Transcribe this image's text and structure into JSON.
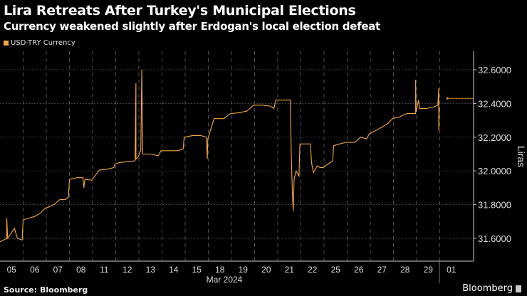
{
  "chart_data": {
    "type": "line",
    "title": "Lira Retreats After Turkey's Municipal Elections",
    "subtitle": "Currency weakened slightly after Erdogan's local election defeat",
    "legend": [
      {
        "name": "USD-TRY Currency",
        "color": "#f5a742"
      }
    ],
    "legend_placement": "top-left",
    "xlabel": "Mar 2024",
    "ylabel": "Liras",
    "ylim": [
      31.48,
      32.7
    ],
    "grid": true,
    "y_axis_side": "right",
    "x_ticks": [
      "05",
      "06",
      "07",
      "08",
      "11",
      "12",
      "13",
      "14",
      "15",
      "18",
      "19",
      "20",
      "21",
      "22",
      "25",
      "26",
      "27",
      "28",
      "29",
      "01"
    ],
    "y_ticks": [
      "31.6000",
      "31.8000",
      "32.0000",
      "32.2000",
      "32.4000",
      "32.6000"
    ],
    "series": [
      {
        "name": "USD-TRY Currency",
        "points": [
          [
            "05",
            0,
            31.58
          ],
          [
            "05",
            7,
            31.6
          ],
          [
            "05",
            7,
            31.72
          ],
          [
            "05",
            8,
            31.6
          ],
          [
            "05",
            15,
            31.66
          ],
          [
            "05",
            18,
            31.6
          ],
          [
            "05",
            23,
            31.59
          ],
          [
            "06",
            0,
            31.71
          ],
          [
            "06",
            6,
            31.72
          ],
          [
            "06",
            12,
            31.73
          ],
          [
            "06",
            18,
            31.75
          ],
          [
            "06",
            23,
            31.78
          ],
          [
            "07",
            0,
            31.78
          ],
          [
            "07",
            8,
            31.8
          ],
          [
            "07",
            14,
            31.83
          ],
          [
            "07",
            20,
            31.83
          ],
          [
            "07",
            23,
            31.845
          ],
          [
            "08",
            0,
            31.95
          ],
          [
            "08",
            8,
            31.96
          ],
          [
            "08",
            14,
            31.96
          ],
          [
            "08",
            15,
            31.9
          ],
          [
            "08",
            16,
            31.95
          ],
          [
            "08",
            23,
            31.945
          ],
          [
            "11",
            7,
            32.005
          ],
          [
            "11",
            15,
            32.01
          ],
          [
            "11",
            22,
            32.02
          ],
          [
            "11",
            23,
            32.04
          ],
          [
            "12",
            4,
            32.05
          ],
          [
            "12",
            12,
            32.055
          ],
          [
            "12",
            20,
            32.06
          ],
          [
            "12",
            21,
            32.52
          ],
          [
            "12",
            21,
            32.07
          ],
          [
            "12",
            23,
            32.08
          ],
          [
            "13",
            2,
            32.12
          ],
          [
            "13",
            3,
            32.6
          ],
          [
            "13",
            4,
            32.1
          ],
          [
            "13",
            12,
            32.1
          ],
          [
            "13",
            20,
            32.09
          ],
          [
            "13",
            23,
            32.12
          ],
          [
            "14",
            8,
            32.12
          ],
          [
            "14",
            16,
            32.12
          ],
          [
            "14",
            22,
            32.13
          ],
          [
            "14",
            23,
            32.2
          ],
          [
            "15",
            8,
            32.21
          ],
          [
            "15",
            16,
            32.21
          ],
          [
            "15",
            22,
            32.2
          ],
          [
            "15",
            23,
            32.07
          ],
          [
            "15",
            23.5,
            32.19
          ],
          [
            "18",
            6,
            32.31
          ],
          [
            "18",
            16,
            32.31
          ],
          [
            "18",
            23,
            32.34
          ],
          [
            "19",
            8,
            32.345
          ],
          [
            "19",
            16,
            32.355
          ],
          [
            "19",
            23,
            32.39
          ],
          [
            "20",
            8,
            32.39
          ],
          [
            "20",
            16,
            32.385
          ],
          [
            "20",
            20,
            32.37
          ],
          [
            "20",
            22,
            32.42
          ],
          [
            "21",
            6,
            32.42
          ],
          [
            "21",
            13,
            32.42
          ],
          [
            "21",
            14,
            32.1
          ],
          [
            "21",
            15,
            31.9
          ],
          [
            "21",
            16,
            31.76
          ],
          [
            "21",
            17,
            31.95
          ],
          [
            "21",
            19,
            32.0
          ],
          [
            "21",
            22,
            31.97
          ],
          [
            "21",
            23,
            32.16
          ],
          [
            "22",
            6,
            32.16
          ],
          [
            "22",
            10,
            32.16
          ],
          [
            "22",
            11,
            32.05
          ],
          [
            "22",
            13,
            31.99
          ],
          [
            "22",
            17,
            32.03
          ],
          [
            "22",
            20,
            32.02
          ],
          [
            "22",
            23,
            32.02
          ],
          [
            "25",
            9,
            32.06
          ],
          [
            "25",
            10,
            32.15
          ],
          [
            "25",
            16,
            32.16
          ],
          [
            "25",
            23,
            32.17
          ],
          [
            "26",
            8,
            32.17
          ],
          [
            "26",
            14,
            32.2
          ],
          [
            "26",
            20,
            32.19
          ],
          [
            "26",
            23,
            32.22
          ],
          [
            "27",
            6,
            32.24
          ],
          [
            "27",
            12,
            32.26
          ],
          [
            "27",
            18,
            32.28
          ],
          [
            "27",
            23,
            32.31
          ],
          [
            "28",
            6,
            32.32
          ],
          [
            "28",
            14,
            32.34
          ],
          [
            "28",
            23,
            32.34
          ],
          [
            "28",
            23,
            32.54
          ],
          [
            "28",
            23.5,
            32.35
          ],
          [
            "29",
            2,
            32.42
          ],
          [
            "29",
            3,
            32.37
          ],
          [
            "29",
            10,
            32.37
          ],
          [
            "29",
            18,
            32.38
          ],
          [
            "29",
            22,
            32.39
          ],
          [
            "29",
            23,
            32.49
          ],
          [
            "29",
            23,
            32.24
          ],
          [
            "29",
            23.5,
            32.38
          ]
        ],
        "last_value": 32.43
      }
    ]
  },
  "footer": {
    "source": "Source: Bloomberg",
    "logo": "Bloomberg"
  }
}
